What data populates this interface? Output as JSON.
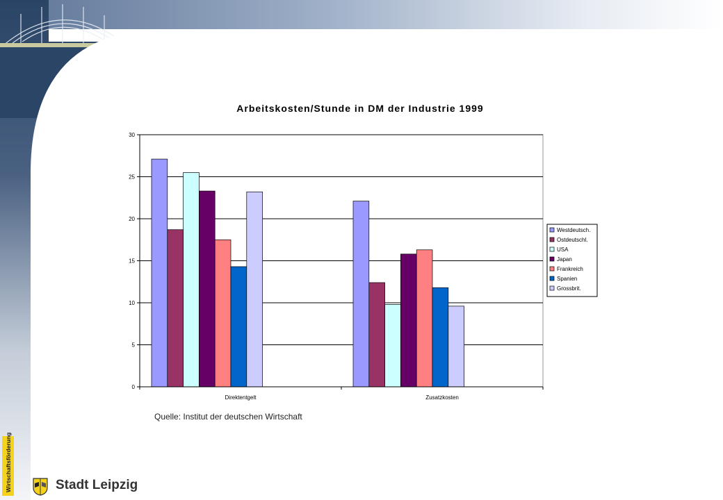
{
  "chart_data": {
    "type": "bar",
    "title": "Arbeitskosten/Stunde in DM der Industrie 1999",
    "categories": [
      "Direktentgelt",
      "Zusatzkosten"
    ],
    "ylim": [
      0,
      30
    ],
    "yticks": [
      0,
      5,
      10,
      15,
      20,
      25,
      30
    ],
    "grid": true,
    "legend_position": "right",
    "series": [
      {
        "name": "Westdeutsch.",
        "color": "#9999ff",
        "values": [
          27.1,
          22.1
        ]
      },
      {
        "name": "Ostdeutschl.",
        "color": "#993366",
        "values": [
          18.7,
          12.4
        ]
      },
      {
        "name": "USA",
        "color": "#ccffff",
        "values": [
          25.5,
          9.8
        ]
      },
      {
        "name": "Japan",
        "color": "#660066",
        "values": [
          23.3,
          15.8
        ]
      },
      {
        "name": "Frankreich",
        "color": "#ff8080",
        "values": [
          17.5,
          16.3
        ]
      },
      {
        "name": "Spanien",
        "color": "#0066cc",
        "values": [
          14.3,
          11.8
        ]
      },
      {
        "name": "Grossbrit.",
        "color": "#ccccff",
        "values": [
          23.2,
          9.6
        ]
      }
    ]
  },
  "source": "Quelle: Institut der deutschen Wirtschaft",
  "footer": {
    "side_tag": "Wirtschaftsförderung",
    "city": "Stadt Leipzig"
  },
  "colors": {
    "sky": "#8fa3c0",
    "water": "#1f3350",
    "tag": "#f5d21c"
  }
}
